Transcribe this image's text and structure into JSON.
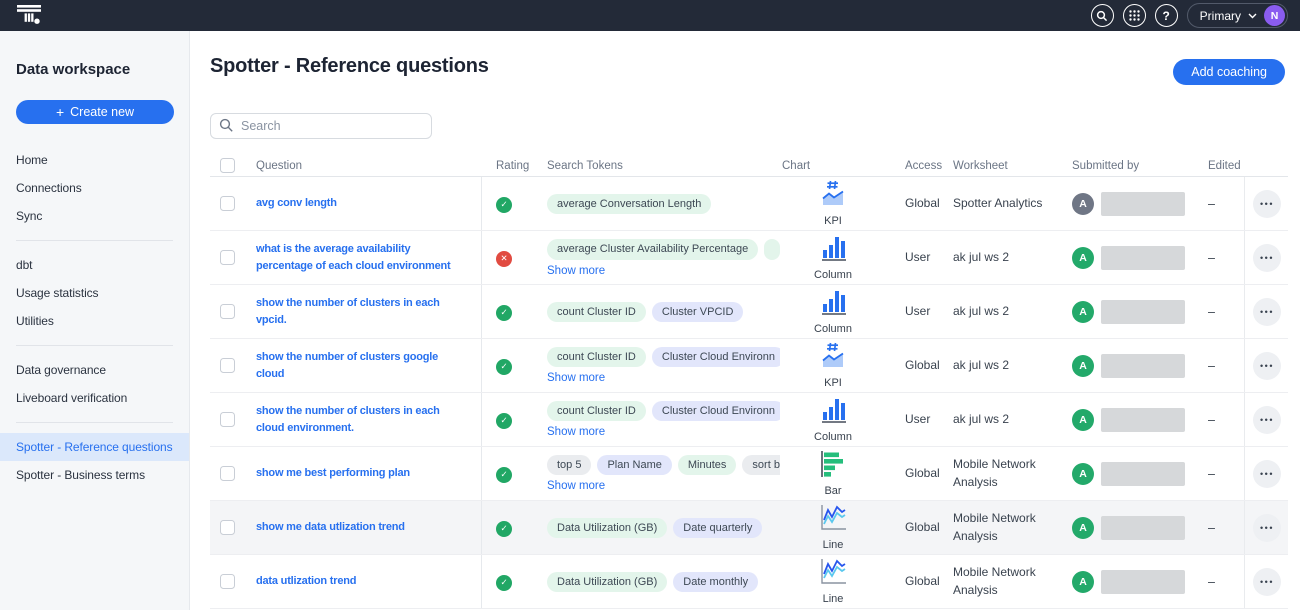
{
  "colors": {
    "accent_blue": "#2770EF",
    "topnav_bg": "#232A38",
    "pass_green": "#21A765",
    "fail_red": "#E14B41",
    "avatar_purple": "#8A5CF0",
    "avatar_green": "#23A96A",
    "avatar_gray": "#6F7685",
    "chip_measure": "#E3F5EB",
    "chip_attribute": "#E2E6FB",
    "chip_keyword": "#EAECEF",
    "selected_item_bg": "#DBE8FB"
  },
  "topnav": {
    "org_label": "Primary",
    "user_avatar_initial": "N"
  },
  "sidebar": {
    "title": "Data workspace",
    "create_button_label": "Create new",
    "create_button_plus": "+",
    "selected": "Spotter - Reference questions",
    "groups": [
      [
        "Home",
        "Connections",
        "Sync"
      ],
      [
        "dbt",
        "Usage statistics",
        "Utilities"
      ],
      [
        "Data governance",
        "Liveboard verification"
      ],
      [
        "Spotter - Reference questions",
        "Spotter - Business terms"
      ]
    ]
  },
  "header": {
    "title": "Spotter - Reference questions",
    "add_button_label": "Add coaching"
  },
  "search": {
    "placeholder": "Search",
    "value": ""
  },
  "table": {
    "columns": [
      "Question",
      "Rating",
      "Search Tokens",
      "Chart",
      "Access",
      "Worksheet",
      "Submitted by",
      "Edited by"
    ],
    "show_more_label": "Show more",
    "rows": [
      {
        "question": "avg conv length",
        "rating": "pass",
        "tokens": [
          {
            "label": "average Conversation Length",
            "type": "measure"
          }
        ],
        "show_more": false,
        "chart": "KPI",
        "access": "Global",
        "worksheet": "Spotter Analytics",
        "submitted_by": {
          "initial": "A",
          "color": "gray"
        },
        "edited_by": "–",
        "highlighted": false
      },
      {
        "question": "what is the average availability percentage of each cloud environment",
        "rating": "fail",
        "tokens": [
          {
            "label": "average Cluster Availability Percentage",
            "type": "measure"
          },
          {
            "label": "",
            "type": "measure",
            "partial": true
          }
        ],
        "show_more": true,
        "chart": "Column",
        "access": "User",
        "worksheet": "ak jul ws 2",
        "submitted_by": {
          "initial": "A",
          "color": "green"
        },
        "edited_by": "–",
        "highlighted": false
      },
      {
        "question": "show the number of clusters in each vpcid.",
        "rating": "pass",
        "tokens": [
          {
            "label": "count Cluster ID",
            "type": "measure"
          },
          {
            "label": "Cluster VPCID",
            "type": "attribute"
          }
        ],
        "show_more": false,
        "chart": "Column",
        "access": "User",
        "worksheet": "ak jul ws 2",
        "submitted_by": {
          "initial": "A",
          "color": "green"
        },
        "edited_by": "–",
        "highlighted": false
      },
      {
        "question": "show the number of clusters google cloud",
        "rating": "pass",
        "tokens": [
          {
            "label": "count Cluster ID",
            "type": "measure"
          },
          {
            "label": "Cluster Cloud Environn",
            "type": "attribute"
          }
        ],
        "show_more": true,
        "chart": "KPI",
        "access": "Global",
        "worksheet": "ak jul ws 2",
        "submitted_by": {
          "initial": "A",
          "color": "green"
        },
        "edited_by": "–",
        "highlighted": false
      },
      {
        "question": "show the number of clusters in each cloud environment.",
        "rating": "pass",
        "tokens": [
          {
            "label": "count Cluster ID",
            "type": "measure"
          },
          {
            "label": "Cluster Cloud Environn",
            "type": "attribute"
          }
        ],
        "show_more": true,
        "chart": "Column",
        "access": "User",
        "worksheet": "ak jul ws 2",
        "submitted_by": {
          "initial": "A",
          "color": "green"
        },
        "edited_by": "–",
        "highlighted": false
      },
      {
        "question": "show me best performing plan",
        "rating": "pass",
        "tokens": [
          {
            "label": "top 5",
            "type": "keyword"
          },
          {
            "label": "Plan Name",
            "type": "attribute"
          },
          {
            "label": "Minutes",
            "type": "measure"
          },
          {
            "label": "sort b",
            "type": "keyword"
          }
        ],
        "show_more": true,
        "chart": "Bar",
        "access": "Global",
        "worksheet": "Mobile Network Analysis",
        "submitted_by": {
          "initial": "A",
          "color": "green"
        },
        "edited_by": "–",
        "highlighted": false
      },
      {
        "question": "show me data utlization trend",
        "rating": "pass",
        "tokens": [
          {
            "label": "Data Utilization (GB)",
            "type": "measure"
          },
          {
            "label": "Date quarterly",
            "type": "attribute"
          }
        ],
        "show_more": false,
        "chart": "Line",
        "access": "Global",
        "worksheet": "Mobile Network Analysis",
        "submitted_by": {
          "initial": "A",
          "color": "green"
        },
        "edited_by": "–",
        "highlighted": true
      },
      {
        "question": "data utlization trend",
        "rating": "pass",
        "tokens": [
          {
            "label": "Data Utilization (GB)",
            "type": "measure"
          },
          {
            "label": "Date monthly",
            "type": "attribute"
          }
        ],
        "show_more": false,
        "chart": "Line",
        "access": "Global",
        "worksheet": "Mobile Network Analysis",
        "submitted_by": {
          "initial": "A",
          "color": "green"
        },
        "edited_by": "–",
        "highlighted": false
      }
    ]
  }
}
